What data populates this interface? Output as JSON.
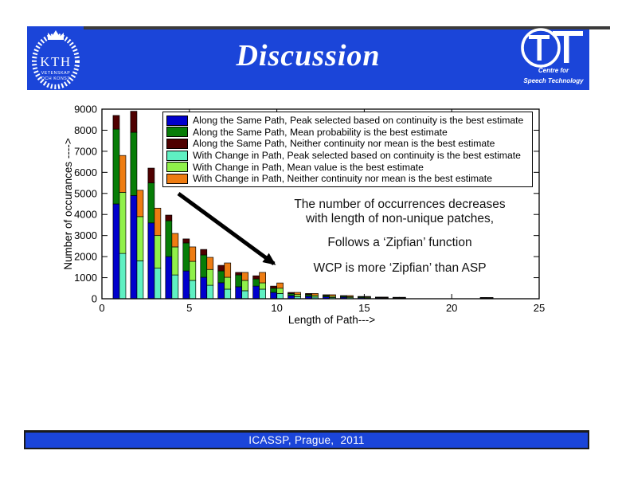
{
  "header": {
    "title": "Discussion",
    "bar_color": "#1b45d9",
    "kth": {
      "acronym": "KTH",
      "line1": "VETENSKAP",
      "line2": "OCH KONST"
    },
    "tt": {
      "letters": "TT",
      "line1": "Centre for",
      "line2": "Speech Technology"
    }
  },
  "annotations": {
    "line1": "The number of occurrences decreases",
    "line2": "with length of non-unique patches,",
    "line3": "Follows a ‘Zipfian’ function",
    "line4": "WCP is more ‘Zipfian’ than ASP"
  },
  "footer": {
    "text": "ICASSP, Prague,  2011",
    "bar_color": "#1b45d9"
  },
  "chart_data": {
    "type": "bar",
    "stacked": true,
    "grouped_pairs": [
      "ASP",
      "WCP"
    ],
    "title": "",
    "xlabel": "Length of Path--->",
    "ylabel": "Number of occurances ---->",
    "xlim": [
      0,
      25
    ],
    "ylim": [
      0,
      9000
    ],
    "xticks": [
      0,
      5,
      10,
      15,
      20,
      25
    ],
    "yticks": [
      0,
      1000,
      2000,
      3000,
      4000,
      5000,
      6000,
      7000,
      8000,
      9000
    ],
    "grid": false,
    "legend_position": "upper center",
    "x": [
      1,
      2,
      3,
      4,
      5,
      6,
      7,
      8,
      9,
      10,
      11,
      12,
      13,
      14,
      15,
      16,
      17,
      22
    ],
    "series": [
      {
        "name": "Along the Same Path, Peak selected based on continuity is the best estimate",
        "group": "ASP",
        "color": "#0000cc",
        "values": [
          4500,
          4900,
          3600,
          2000,
          1320,
          1020,
          760,
          570,
          600,
          300,
          150,
          120,
          90,
          70,
          50,
          40,
          35,
          30
        ]
      },
      {
        "name": "Along the Same Path, Mean probability is the best estimate",
        "group": "ASP",
        "color": "#077d07",
        "values": [
          3550,
          3000,
          1900,
          1700,
          1330,
          1060,
          560,
          560,
          340,
          200,
          100,
          80,
          60,
          50,
          40,
          25,
          20,
          20
        ]
      },
      {
        "name": "Along the Same Path, Neither continuity nor mean is the best estimate",
        "group": "ASP",
        "color": "#4f0000",
        "values": [
          650,
          1000,
          700,
          270,
          190,
          260,
          265,
          120,
          150,
          100,
          50,
          50,
          40,
          30,
          20,
          15,
          15,
          10
        ]
      },
      {
        "name": "With Change in Path, Peak selected based on continuity is the best estimate",
        "group": "WCP",
        "color": "#5ff0c2",
        "values": [
          2150,
          1800,
          1450,
          1130,
          870,
          640,
          455,
          380,
          455,
          250,
          100,
          80,
          60,
          50,
          40,
          30,
          25,
          20
        ]
      },
      {
        "name": "With Change in Path, Mean value is the best estimate",
        "group": "WCP",
        "color": "#90f04a",
        "values": [
          2900,
          2100,
          1550,
          1330,
          905,
          750,
          565,
          490,
          300,
          250,
          100,
          80,
          60,
          50,
          40,
          25,
          20,
          20
        ]
      },
      {
        "name": "With Change in Path, Neither continuity nor mean is the best estimate",
        "group": "WCP",
        "color": "#ee7c12",
        "values": [
          1750,
          1250,
          1300,
          640,
          685,
          575,
          680,
          380,
          495,
          250,
          100,
          90,
          70,
          50,
          30,
          25,
          25,
          20
        ]
      }
    ]
  }
}
